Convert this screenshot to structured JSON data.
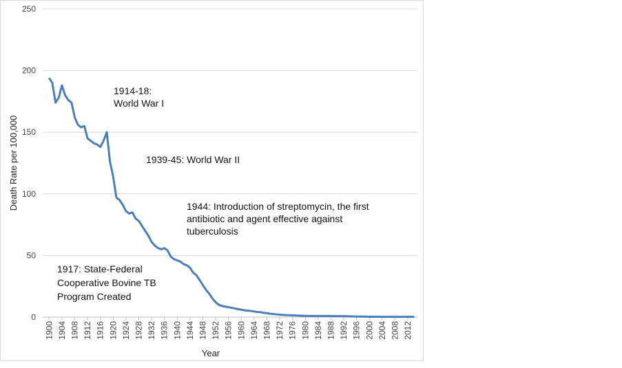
{
  "chart_data": {
    "type": "line",
    "x_label": "Year",
    "y_label": "Death Rate per 100,000",
    "x": [
      1900,
      1901,
      1902,
      1903,
      1904,
      1905,
      1906,
      1907,
      1908,
      1909,
      1910,
      1911,
      1912,
      1913,
      1914,
      1915,
      1916,
      1917,
      1918,
      1919,
      1920,
      1921,
      1922,
      1923,
      1924,
      1925,
      1926,
      1927,
      1928,
      1929,
      1930,
      1931,
      1932,
      1933,
      1934,
      1935,
      1936,
      1937,
      1938,
      1939,
      1940,
      1941,
      1942,
      1943,
      1944,
      1945,
      1946,
      1947,
      1948,
      1949,
      1950,
      1951,
      1952,
      1953,
      1954,
      1955,
      1956,
      1957,
      1958,
      1959,
      1960,
      1961,
      1962,
      1963,
      1964,
      1965,
      1966,
      1967,
      1968,
      1969,
      1970,
      1971,
      1972,
      1973,
      1974,
      1975,
      1976,
      1977,
      1978,
      1979,
      1980,
      1981,
      1982,
      1983,
      1984,
      1985,
      1986,
      1987,
      1988,
      1989,
      1990,
      1991,
      1992,
      1993,
      1994,
      1995,
      1996,
      1997,
      1998,
      1999,
      2000,
      2001,
      2002,
      2003,
      2004,
      2005,
      2006,
      2007,
      2008,
      2009,
      2010,
      2011,
      2012,
      2013,
      2014
    ],
    "series": [
      {
        "color": "#4a7ebb",
        "values": [
          194,
          190,
          174,
          178,
          188,
          180,
          176,
          174,
          162,
          156,
          154,
          155,
          145,
          143,
          141,
          140,
          138,
          143,
          150,
          126,
          114,
          97,
          95,
          91,
          86,
          84,
          85,
          80,
          78,
          74,
          70,
          66,
          61,
          58,
          56,
          55,
          56,
          54,
          49,
          47,
          46,
          45,
          43,
          42,
          40,
          36,
          34,
          30,
          26,
          22,
          19,
          15,
          12,
          10,
          9,
          8.5,
          8,
          7.5,
          7,
          6.5,
          6,
          5.5,
          5.2,
          5,
          4.5,
          4.2,
          4,
          3.5,
          3.2,
          2.7,
          2.5,
          2.2,
          2,
          1.8,
          1.6,
          1.5,
          1.4,
          1.3,
          1.2,
          1.1,
          1,
          1,
          0.9,
          0.9,
          0.9,
          0.9,
          0.9,
          0.9,
          0.9,
          0.8,
          0.8,
          0.8,
          0.8,
          0.7,
          0.6,
          0.5,
          0.5,
          0.4,
          0.4,
          0.4,
          0.3,
          0.3,
          0.3,
          0.3,
          0.2,
          0.2,
          0.2,
          0.2,
          0.2,
          0.2,
          0.2,
          0.2,
          0.2,
          0.2,
          0.2
        ]
      }
    ],
    "xlim": [
      1898,
      2015
    ],
    "ylim": [
      0,
      250
    ],
    "xticks": [
      1900,
      1904,
      1908,
      1912,
      1916,
      1920,
      1924,
      1928,
      1932,
      1936,
      1940,
      1944,
      1948,
      1952,
      1956,
      1960,
      1964,
      1968,
      1972,
      1976,
      1980,
      1984,
      1988,
      1992,
      1996,
      2000,
      2004,
      2008,
      2012
    ],
    "yticks": [
      0,
      50,
      100,
      150,
      200,
      250
    ],
    "grid": true,
    "annotations": [
      {
        "lines": [
          "1914-18:",
          "World War I"
        ]
      },
      {
        "lines": [
          "1939-45: World War II"
        ]
      },
      {
        "lines": [
          "1944: Introduction of streptomycin, the first",
          "antibiotic and agent effective against",
          "tuberculosis"
        ]
      },
      {
        "lines": [
          "1917: State-Federal",
          "Cooperative Bovine TB",
          "Program Created"
        ]
      }
    ]
  }
}
